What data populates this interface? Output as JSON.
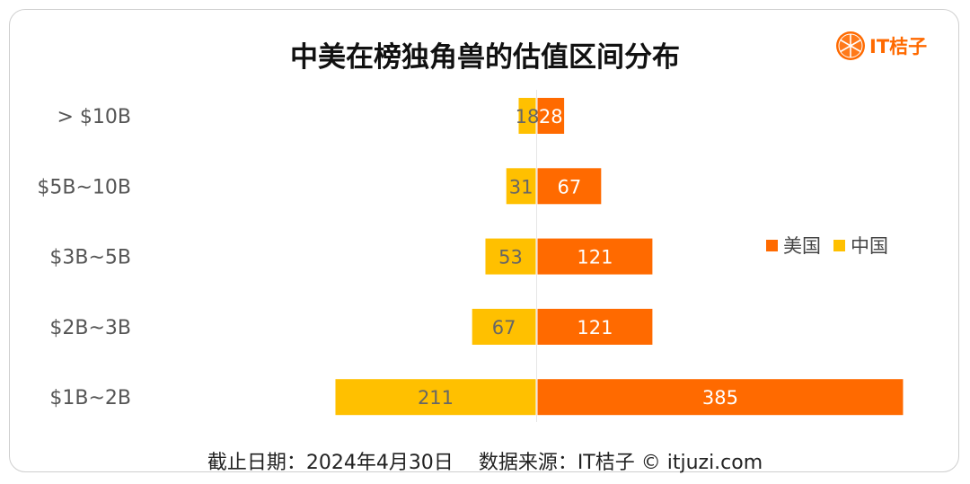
{
  "chart_data": {
    "type": "bar",
    "orientation": "horizontal-diverging",
    "title": "中美在榜独角兽的估值区间分布",
    "categories": [
      "> $10B",
      "$5B~10B",
      "$3B~5B",
      "$2B~3B",
      "$1B~2B"
    ],
    "series": [
      {
        "name": "美国",
        "color": "#ff6a00",
        "values": [
          28,
          67,
          121,
          121,
          385
        ]
      },
      {
        "name": "中国",
        "color": "#ffc000",
        "values": [
          18,
          31,
          53,
          67,
          211
        ]
      }
    ],
    "legend_position": "right",
    "grid": false
  },
  "logo": {
    "text": "IT桔子"
  },
  "footer": {
    "date": "截止日期：2024年4月30日",
    "source": "数据来源：IT桔子 © itjuzi.com"
  }
}
